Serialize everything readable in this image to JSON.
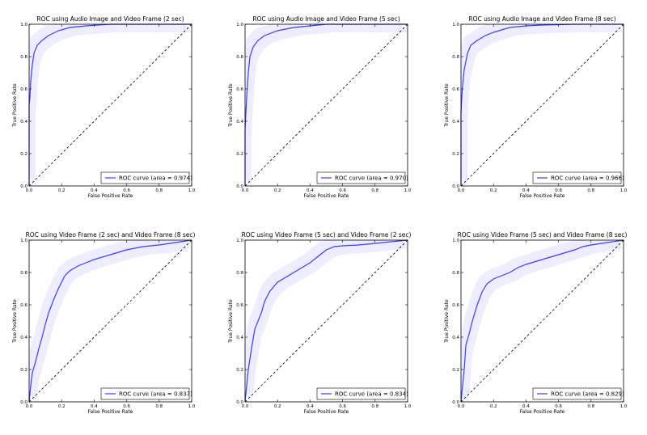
{
  "chart_data": [
    {
      "type": "line",
      "title": "ROC using Audio Image and Video Frame (2 sec)",
      "xlabel": "False Positive Rate",
      "ylabel": "True Positive Rate",
      "xlim": [
        0.0,
        1.0
      ],
      "ylim": [
        0.0,
        1.0
      ],
      "xticks": [
        "0.0",
        "0.2",
        "0.4",
        "0.6",
        "0.8",
        "1.0"
      ],
      "yticks": [
        "0.0",
        "0.2",
        "0.4",
        "0.6",
        "0.8",
        "1.0"
      ],
      "legend": "ROC curve (area = 0.974)",
      "legend_position": "lower-right",
      "colors": {
        "roc": "#3a3aff",
        "band": "#6b6bff",
        "diagonal": "#000000"
      },
      "series": [
        {
          "x": [
            0.0,
            0.0,
            0.005,
            0.01,
            0.02,
            0.03,
            0.05,
            0.08,
            0.12,
            0.18,
            0.25,
            0.35,
            0.5,
            0.7,
            1.0
          ],
          "y": [
            0.0,
            0.5,
            0.55,
            0.65,
            0.75,
            0.82,
            0.87,
            0.9,
            0.93,
            0.96,
            0.98,
            0.99,
            1.0,
            1.0,
            1.0
          ]
        },
        {
          "x": [
            0.0,
            1.0
          ],
          "y": [
            0.0,
            1.0
          ]
        }
      ]
    },
    {
      "type": "line",
      "title": "ROC using Audio Image and Video Frame (5 sec)",
      "xlabel": "False Positive Rate",
      "ylabel": "True Positive Rate",
      "xlim": [
        0.0,
        1.0
      ],
      "ylim": [
        0.0,
        1.0
      ],
      "xticks": [
        "0.0",
        "0.2",
        "0.4",
        "0.6",
        "0.8",
        "1.0"
      ],
      "yticks": [
        "0.0",
        "0.2",
        "0.4",
        "0.6",
        "0.8",
        "1.0"
      ],
      "legend": "ROC curve (area = 0.970)",
      "legend_position": "lower-right",
      "colors": {
        "roc": "#3a3aff",
        "band": "#6b6bff",
        "diagonal": "#000000"
      },
      "series": [
        {
          "x": [
            0.0,
            0.0,
            0.005,
            0.01,
            0.02,
            0.03,
            0.05,
            0.08,
            0.12,
            0.2,
            0.3,
            0.4,
            0.5,
            0.7,
            1.0
          ],
          "y": [
            0.0,
            0.35,
            0.45,
            0.55,
            0.7,
            0.8,
            0.86,
            0.9,
            0.93,
            0.96,
            0.98,
            0.99,
            1.0,
            1.0,
            1.0
          ]
        },
        {
          "x": [
            0.0,
            1.0
          ],
          "y": [
            0.0,
            1.0
          ]
        }
      ]
    },
    {
      "type": "line",
      "title": "ROC using Audio Image and Video Frame (8 sec)",
      "xlabel": "False Positive Rate",
      "ylabel": "True Positive Rate",
      "xlim": [
        0.0,
        1.0
      ],
      "ylim": [
        0.0,
        1.0
      ],
      "xticks": [
        "0.0",
        "0.2",
        "0.4",
        "0.6",
        "0.8",
        "1.0"
      ],
      "yticks": [
        "0.0",
        "0.2",
        "0.4",
        "0.6",
        "0.8",
        "1.0"
      ],
      "legend": "ROC curve (area = 0.966)",
      "legend_position": "lower-right",
      "colors": {
        "roc": "#3a3aff",
        "band": "#6b6bff",
        "diagonal": "#000000"
      },
      "series": [
        {
          "x": [
            0.0,
            0.0,
            0.005,
            0.01,
            0.02,
            0.04,
            0.06,
            0.1,
            0.15,
            0.2,
            0.3,
            0.4,
            0.5,
            0.7,
            1.0
          ],
          "y": [
            0.0,
            0.45,
            0.55,
            0.62,
            0.72,
            0.82,
            0.87,
            0.9,
            0.93,
            0.95,
            0.98,
            0.99,
            0.995,
            1.0,
            1.0
          ]
        },
        {
          "x": [
            0.0,
            1.0
          ],
          "y": [
            0.0,
            1.0
          ]
        }
      ]
    },
    {
      "type": "line",
      "title": "ROC using Video Frame (2 sec) and Video Frame (8 sec)",
      "xlabel": "False Positive Rate",
      "ylabel": "True Positive Rate",
      "xlim": [
        0.0,
        1.0
      ],
      "ylim": [
        0.0,
        1.0
      ],
      "xticks": [
        "0.0",
        "0.2",
        "0.4",
        "0.6",
        "0.8",
        "1.0"
      ],
      "yticks": [
        "0.0",
        "0.2",
        "0.4",
        "0.6",
        "0.8",
        "1.0"
      ],
      "legend": "ROC curve (area = 0.837)",
      "legend_position": "lower-right",
      "colors": {
        "roc": "#3a3aff",
        "band": "#6b6bff",
        "diagonal": "#000000"
      },
      "series": [
        {
          "x": [
            0.0,
            0.01,
            0.02,
            0.04,
            0.06,
            0.08,
            0.1,
            0.12,
            0.15,
            0.18,
            0.22,
            0.25,
            0.3,
            0.35,
            0.4,
            0.5,
            0.6,
            0.7,
            0.8,
            0.9,
            1.0
          ],
          "y": [
            0.0,
            0.1,
            0.18,
            0.25,
            0.33,
            0.4,
            0.48,
            0.55,
            0.63,
            0.7,
            0.78,
            0.81,
            0.84,
            0.86,
            0.88,
            0.91,
            0.94,
            0.96,
            0.97,
            0.985,
            1.0
          ]
        },
        {
          "x": [
            0.0,
            1.0
          ],
          "y": [
            0.0,
            1.0
          ]
        }
      ]
    },
    {
      "type": "line",
      "title": "ROC using Video Frame (5 sec) and Video Frame (2 sec)",
      "xlabel": "False Positive Rate",
      "ylabel": "True Positive Rate",
      "xlim": [
        0.0,
        1.0
      ],
      "ylim": [
        0.0,
        1.0
      ],
      "xticks": [
        "0.0",
        "0.2",
        "0.4",
        "0.6",
        "0.8",
        "1.0"
      ],
      "yticks": [
        "0.0",
        "0.2",
        "0.4",
        "0.6",
        "0.8",
        "1.0"
      ],
      "legend": "ROC curve (area = 0.834)",
      "legend_position": "lower-right",
      "colors": {
        "roc": "#3a3aff",
        "band": "#6b6bff",
        "diagonal": "#000000"
      },
      "series": [
        {
          "x": [
            0.0,
            0.01,
            0.02,
            0.04,
            0.06,
            0.08,
            0.1,
            0.12,
            0.15,
            0.2,
            0.25,
            0.3,
            0.35,
            0.4,
            0.45,
            0.5,
            0.55,
            0.6,
            0.7,
            0.8,
            0.9,
            1.0
          ],
          "y": [
            0.0,
            0.1,
            0.2,
            0.33,
            0.45,
            0.5,
            0.55,
            0.62,
            0.68,
            0.74,
            0.77,
            0.8,
            0.83,
            0.86,
            0.9,
            0.94,
            0.96,
            0.965,
            0.97,
            0.98,
            0.99,
            1.0
          ]
        },
        {
          "x": [
            0.0,
            1.0
          ],
          "y": [
            0.0,
            1.0
          ]
        }
      ]
    },
    {
      "type": "line",
      "title": "ROC using Video Frame (5 sec) and Video Frame (8 sec)",
      "xlabel": "False Positive Rate",
      "ylabel": "True Positive Rate",
      "xlim": [
        0.0,
        1.0
      ],
      "ylim": [
        0.0,
        1.0
      ],
      "xticks": [
        "0.0",
        "0.2",
        "0.4",
        "0.6",
        "0.8",
        "1.0"
      ],
      "yticks": [
        "0.0",
        "0.2",
        "0.4",
        "0.6",
        "0.8",
        "1.0"
      ],
      "legend": "ROC curve (area = 0.829)",
      "legend_position": "lower-right",
      "colors": {
        "roc": "#3a3aff",
        "band": "#6b6bff",
        "diagonal": "#000000"
      },
      "series": [
        {
          "x": [
            0.0,
            0.01,
            0.02,
            0.03,
            0.05,
            0.07,
            0.1,
            0.13,
            0.16,
            0.2,
            0.25,
            0.3,
            0.35,
            0.4,
            0.5,
            0.6,
            0.7,
            0.75,
            0.8,
            0.9,
            1.0
          ],
          "y": [
            0.0,
            0.1,
            0.2,
            0.35,
            0.42,
            0.5,
            0.6,
            0.68,
            0.73,
            0.76,
            0.78,
            0.8,
            0.83,
            0.85,
            0.88,
            0.91,
            0.94,
            0.96,
            0.97,
            0.985,
            1.0
          ]
        },
        {
          "x": [
            0.0,
            1.0
          ],
          "y": [
            0.0,
            1.0
          ]
        }
      ]
    }
  ]
}
